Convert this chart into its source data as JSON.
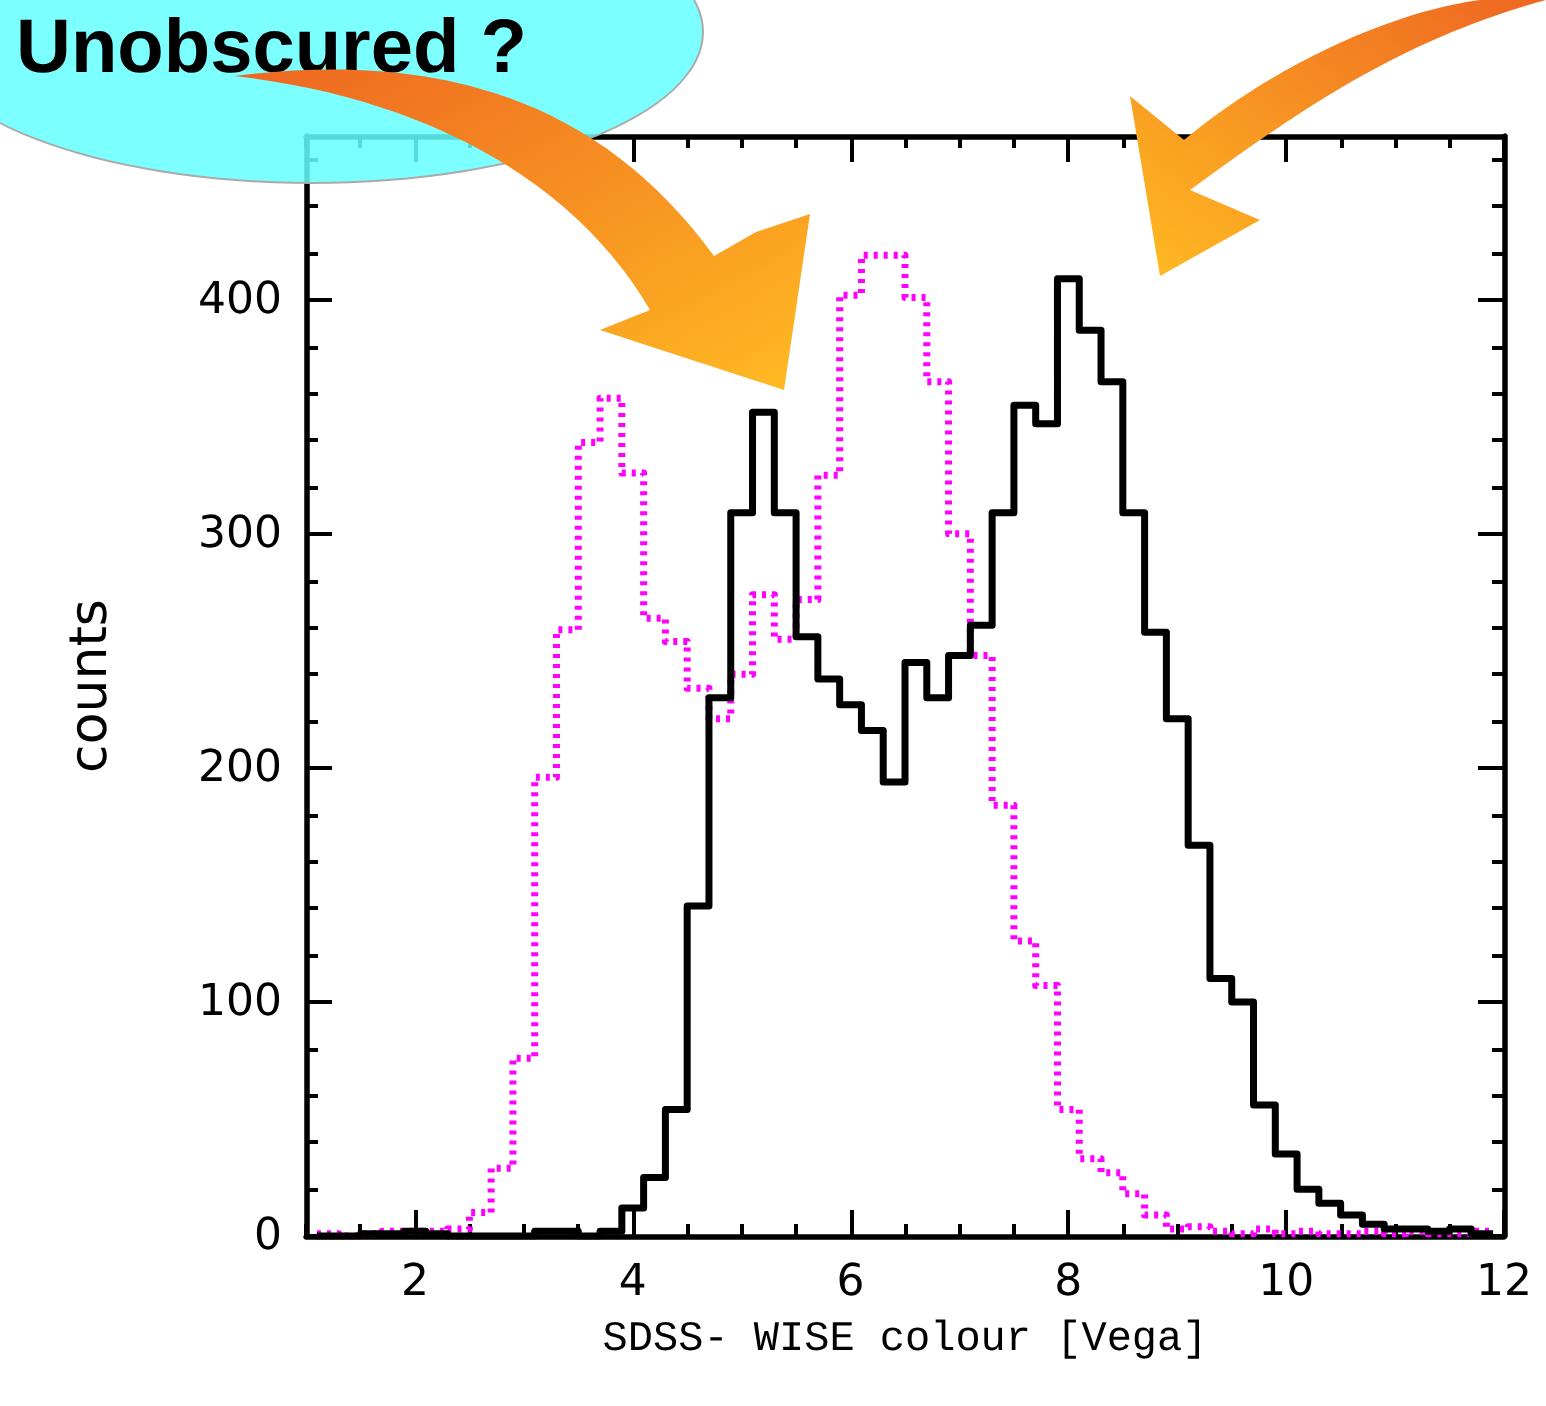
{
  "chart_data": {
    "type": "histogram",
    "xlabel": "SDSS- WISE colour [Vega]",
    "ylabel": "counts",
    "annotations": [
      "Unobscured ?"
    ],
    "bins": [
      1.1,
      1.3,
      1.5,
      1.7,
      1.9,
      2.1,
      2.3,
      2.5,
      2.7,
      2.9,
      3.1,
      3.3,
      3.5,
      3.7,
      3.9,
      4.1,
      4.3,
      4.5,
      4.7,
      4.9,
      5.1,
      5.3,
      5.5,
      5.7,
      5.9,
      6.1,
      6.3,
      6.5,
      6.7,
      6.9,
      7.1,
      7.3,
      7.5,
      7.7,
      7.9,
      8.1,
      8.3,
      8.5,
      8.7,
      8.9,
      9.1,
      9.3,
      9.5,
      9.7,
      9.9,
      10.1,
      10.3,
      10.5,
      10.7,
      10.9,
      11.1,
      11.3,
      11.5,
      11.7,
      11.9
    ],
    "series": [
      {
        "color": "#000000",
        "line_style": "solid",
        "values": [
          0,
          0,
          1,
          1,
          2,
          1,
          0,
          0,
          0,
          0,
          2,
          2,
          0,
          2,
          12,
          25,
          54,
          141,
          230,
          309,
          352,
          309,
          256,
          238,
          227,
          216,
          194,
          245,
          230,
          248,
          261,
          309,
          355,
          347,
          409,
          387,
          365,
          309,
          258,
          221,
          167,
          110,
          100,
          56,
          35,
          20,
          14,
          9,
          5,
          3,
          3,
          2,
          3,
          1
        ]
      },
      {
        "color": "#ff00ff",
        "line_style": "dotted",
        "values": [
          1,
          0,
          1,
          2,
          2,
          2,
          3,
          10,
          29,
          76,
          196,
          259,
          339,
          358,
          326,
          264,
          254,
          234,
          221,
          240,
          274,
          255,
          272,
          325,
          402,
          419,
          419,
          401,
          365,
          300,
          248,
          184,
          126,
          107,
          54,
          33,
          27,
          18,
          9,
          3,
          4,
          2,
          1,
          3,
          1,
          2,
          1,
          1,
          2,
          1,
          2,
          1,
          1,
          2
        ]
      }
    ],
    "xlim": [
      1,
      12
    ],
    "ylim": [
      0,
      470
    ],
    "xticks": [
      2,
      4,
      6,
      8,
      10,
      12
    ],
    "yticks": [
      0,
      100,
      200,
      300,
      400
    ],
    "grid": false
  }
}
